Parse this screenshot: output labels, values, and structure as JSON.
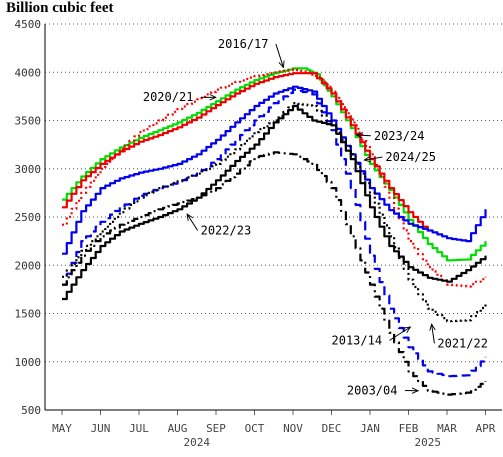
{
  "chart_data": {
    "type": "line",
    "title": "Billion cubic feet",
    "xlabel": "",
    "ylabel": "",
    "ylim": [
      500,
      4500
    ],
    "yticks": [
      500,
      1000,
      1500,
      2000,
      2500,
      3000,
      3500,
      4000,
      4500
    ],
    "x_tick_labels": [
      "MAY",
      "JUN",
      "JUL",
      "AUG",
      "SEP",
      "OCT",
      "NOV",
      "DEC",
      "JAN",
      "FEB",
      "MAR",
      "APR"
    ],
    "year_labels": [
      {
        "label": "2024",
        "month_index": 3.5
      },
      {
        "label": "2025",
        "month_index": 9.5
      }
    ],
    "grid": true,
    "month_index_note": "x values are month positions: 0 = MAY, 11 = APR",
    "series": [
      {
        "name": "2016/17",
        "color": "#00dd00",
        "style": "solid",
        "x": [
          0,
          0.5,
          1,
          1.5,
          2,
          2.5,
          3,
          3.5,
          4,
          4.5,
          5,
          5.5,
          6,
          6.3,
          6.6,
          7,
          7.5,
          8,
          8.5,
          9,
          9.5,
          10,
          10.5,
          11
        ],
        "y": [
          2680,
          2920,
          3100,
          3220,
          3320,
          3400,
          3480,
          3580,
          3700,
          3820,
          3920,
          3990,
          4040,
          4040,
          3980,
          3750,
          3420,
          3050,
          2780,
          2470,
          2220,
          2050,
          2060,
          2250
        ]
      },
      {
        "name": "2020/21",
        "color": "#ff0000",
        "style": "dotted",
        "x": [
          0,
          0.5,
          1,
          1.5,
          2,
          2.5,
          3,
          3.5,
          4,
          4.5,
          5,
          5.5,
          6,
          6.4,
          6.8,
          7.2,
          7.6,
          8,
          8.5,
          9,
          9.5,
          10,
          10.5,
          11
        ],
        "y": [
          2420,
          2750,
          3000,
          3200,
          3380,
          3500,
          3620,
          3720,
          3820,
          3900,
          3960,
          4000,
          4030,
          4000,
          3900,
          3700,
          3450,
          3150,
          2700,
          2250,
          1980,
          1800,
          1780,
          1880
        ]
      },
      {
        "name": "red-solid",
        "color": "#ee0000",
        "style": "solid",
        "x": [
          0,
          0.5,
          1,
          1.5,
          2,
          2.5,
          3,
          3.5,
          4,
          4.5,
          5,
          5.5,
          6,
          6.5,
          7,
          7.5,
          8,
          8.5,
          9,
          9.5
        ],
        "y": [
          2600,
          2880,
          3050,
          3180,
          3280,
          3350,
          3430,
          3530,
          3660,
          3780,
          3880,
          3950,
          3990,
          3990,
          3780,
          3450,
          3100,
          2800,
          2550,
          2350
        ]
      },
      {
        "name": "2023/24",
        "color": "#0000ee",
        "style": "solid",
        "x": [
          0,
          0.5,
          1,
          1.5,
          2,
          2.5,
          3,
          3.5,
          4,
          4.5,
          5,
          5.5,
          6,
          6.5,
          7,
          7.5,
          8,
          8.5,
          9,
          9.5,
          10,
          10.5,
          11
        ],
        "y": [
          2120,
          2560,
          2800,
          2900,
          2960,
          3000,
          3050,
          3150,
          3300,
          3480,
          3650,
          3780,
          3850,
          3800,
          3500,
          3150,
          2800,
          2570,
          2430,
          2360,
          2280,
          2250,
          2580
        ]
      },
      {
        "name": "2024/25",
        "color": "#0000ee",
        "style": "dashed",
        "x": [
          0,
          0.5,
          1,
          1.5,
          2,
          2.5,
          3,
          3.5,
          4,
          4.5,
          5,
          5.5,
          6,
          6.5,
          7,
          7.5,
          8,
          8.5,
          9,
          9.5,
          10,
          10.5,
          11
        ],
        "y": [
          1800,
          2250,
          2450,
          2600,
          2720,
          2800,
          2860,
          2950,
          3100,
          3300,
          3500,
          3680,
          3820,
          3770,
          3400,
          2800,
          2100,
          1550,
          1150,
          900,
          850,
          860,
          1050
        ]
      },
      {
        "name": "2013/14",
        "color": "#000000",
        "style": "dotted",
        "x": [
          0,
          0.5,
          1,
          1.5,
          2,
          2.5,
          3,
          3.5,
          4,
          4.5,
          5,
          5.5,
          6,
          6.5,
          7,
          7.5,
          8,
          8.5,
          9,
          9.5,
          10,
          10.5,
          11
        ],
        "y": [
          1880,
          2150,
          2350,
          2550,
          2700,
          2800,
          2870,
          2950,
          3050,
          3200,
          3380,
          3500,
          3680,
          3650,
          3450,
          3150,
          2750,
          2300,
          1850,
          1550,
          1420,
          1430,
          1600
        ]
      },
      {
        "name": "2021/22",
        "color": "#000000",
        "style": "solid",
        "x": [
          0,
          0.5,
          1,
          1.5,
          2,
          2.5,
          3,
          3.5,
          4,
          4.5,
          5,
          5.5,
          6,
          6.5,
          7,
          7.5,
          8,
          8.5,
          9,
          9.5,
          10,
          10.5,
          11
        ],
        "y": [
          1650,
          1950,
          2200,
          2350,
          2430,
          2500,
          2580,
          2700,
          2880,
          3080,
          3250,
          3480,
          3650,
          3500,
          3450,
          3100,
          2600,
          2200,
          1980,
          1870,
          1830,
          1950,
          2100
        ]
      },
      {
        "name": "2022/23",
        "color": "#000000",
        "style": "dashdot",
        "x": [
          0,
          0.5,
          1,
          1.5,
          2,
          2.5,
          3,
          3.5,
          4,
          4.5,
          5,
          5.5,
          6,
          6.5,
          7,
          7.5,
          8,
          8.5,
          9,
          9.5,
          10,
          10.5,
          11
        ],
        "y": [
          1800,
          2100,
          2300,
          2420,
          2500,
          2580,
          2640,
          2700,
          2800,
          2950,
          3120,
          3170,
          3150,
          3050,
          2800,
          2300,
          1800,
          1300,
          900,
          700,
          660,
          680,
          800
        ]
      }
    ],
    "annotations": [
      {
        "text": "2016/17",
        "month_index": 4.05,
        "value": 4250,
        "arrow_to_month": 5.75,
        "arrow_to_value": 4050
      },
      {
        "text": "2020/21",
        "month_index": 2.1,
        "value": 3700,
        "arrow_to_month": 4.0,
        "arrow_to_value": 3740
      },
      {
        "text": "2023/24",
        "month_index": 8.1,
        "value": 3300,
        "arrow_to_month": 7.65,
        "arrow_to_value": 3350
      },
      {
        "text": "2024/25",
        "month_index": 8.4,
        "value": 3080,
        "arrow_to_month": 7.85,
        "arrow_to_value": 3090
      },
      {
        "text": "2022/23",
        "month_index": 3.6,
        "value": 2320,
        "arrow_to_month": 3.25,
        "arrow_to_value": 2530
      },
      {
        "text": "2013/14",
        "month_index": 7.0,
        "value": 1180,
        "arrow_to_month": 9.05,
        "arrow_to_value": 1360
      },
      {
        "text": "2021/22",
        "month_index": 9.75,
        "value": 1150,
        "arrow_to_month": 9.6,
        "arrow_to_value": 1390
      },
      {
        "text": "2003/04",
        "month_index": 7.4,
        "value": 660,
        "arrow_to_month": 9.25,
        "arrow_to_value": 700
      }
    ]
  }
}
